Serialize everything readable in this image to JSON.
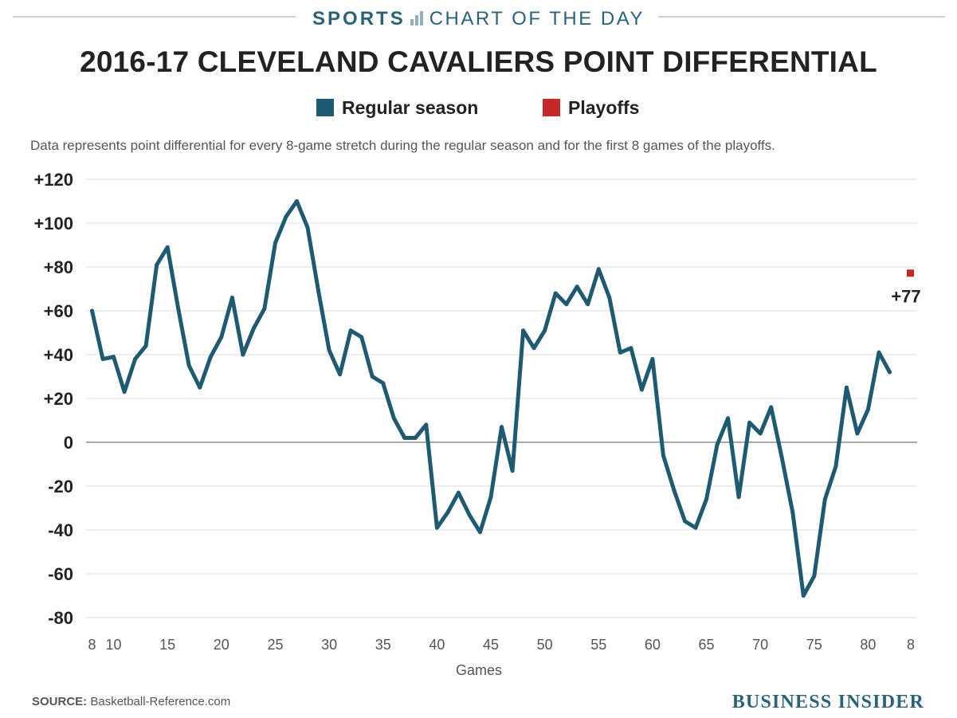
{
  "header": {
    "sports_label": "SPORTS",
    "chart_of_day_label": "CHART OF THE DAY",
    "icon": "bar-chart-icon"
  },
  "title": "2016-17 CLEVELAND CAVALIERS POINT DIFFERENTIAL",
  "subtitle": "Data represents point differential for every 8-game stretch during the regular season and for the first 8 games of the playoffs.",
  "colors": {
    "regular": "#1f5a73",
    "playoffs": "#c62828",
    "brand": "#2a6379",
    "grid": "#dddddd",
    "zero": "#aaaaaa"
  },
  "chart_data": {
    "type": "line",
    "title": "2016-17 CLEVELAND CAVALIERS POINT DIFFERENTIAL",
    "xlabel": "Games",
    "ylabel": "",
    "ylim": [
      -80,
      120
    ],
    "yticks": [
      120,
      100,
      80,
      60,
      40,
      20,
      0,
      -20,
      -40,
      -60,
      -80
    ],
    "ytick_labels": [
      "+120",
      "+100",
      "+80",
      "+60",
      "+40",
      "+20",
      "0",
      "-20",
      "-40",
      "-60",
      "-80"
    ],
    "xlim": [
      8,
      84
    ],
    "xticks": [
      8,
      10,
      15,
      20,
      25,
      30,
      35,
      40,
      45,
      50,
      55,
      60,
      65,
      70,
      75,
      80
    ],
    "playoff_tick_label": "8",
    "grid": true,
    "legend": {
      "position": "top-center",
      "entries": [
        "Regular season",
        "Playoffs"
      ]
    },
    "series": [
      {
        "name": "Regular season",
        "x": [
          8,
          9,
          10,
          11,
          12,
          13,
          14,
          15,
          16,
          17,
          18,
          19,
          20,
          21,
          22,
          23,
          24,
          25,
          26,
          27,
          28,
          29,
          30,
          31,
          32,
          33,
          34,
          35,
          36,
          37,
          38,
          39,
          40,
          41,
          42,
          43,
          44,
          45,
          46,
          47,
          48,
          49,
          50,
          51,
          52,
          53,
          54,
          55,
          56,
          57,
          58,
          59,
          60,
          61,
          62,
          63,
          64,
          65,
          66,
          67,
          68,
          69,
          70,
          71,
          72,
          73,
          74,
          75,
          76,
          77,
          78,
          79,
          80,
          81,
          82
        ],
        "values": [
          60,
          38,
          39,
          23,
          38,
          44,
          81,
          89,
          61,
          35,
          25,
          39,
          48,
          66,
          40,
          52,
          61,
          91,
          103,
          110,
          98,
          69,
          42,
          31,
          51,
          48,
          30,
          27,
          11,
          2,
          2,
          8,
          -39,
          -32,
          -23,
          -33,
          -41,
          -25,
          7,
          -13,
          51,
          43,
          51,
          68,
          63,
          71,
          63,
          79,
          66,
          41,
          43,
          24,
          38,
          -6,
          -22,
          -36,
          -39,
          -26,
          -1,
          11,
          -25,
          9,
          4,
          16,
          -7,
          -32,
          -70,
          -61,
          -26,
          -11,
          25,
          4,
          15,
          41,
          32
        ]
      },
      {
        "name": "Playoffs",
        "x": [
          "8"
        ],
        "values": [
          77
        ],
        "label": "+77"
      }
    ]
  },
  "footer": {
    "source_label": "SOURCE:",
    "source_text": "Basketball-Reference.com",
    "brand": "BUSINESS INSIDER"
  }
}
